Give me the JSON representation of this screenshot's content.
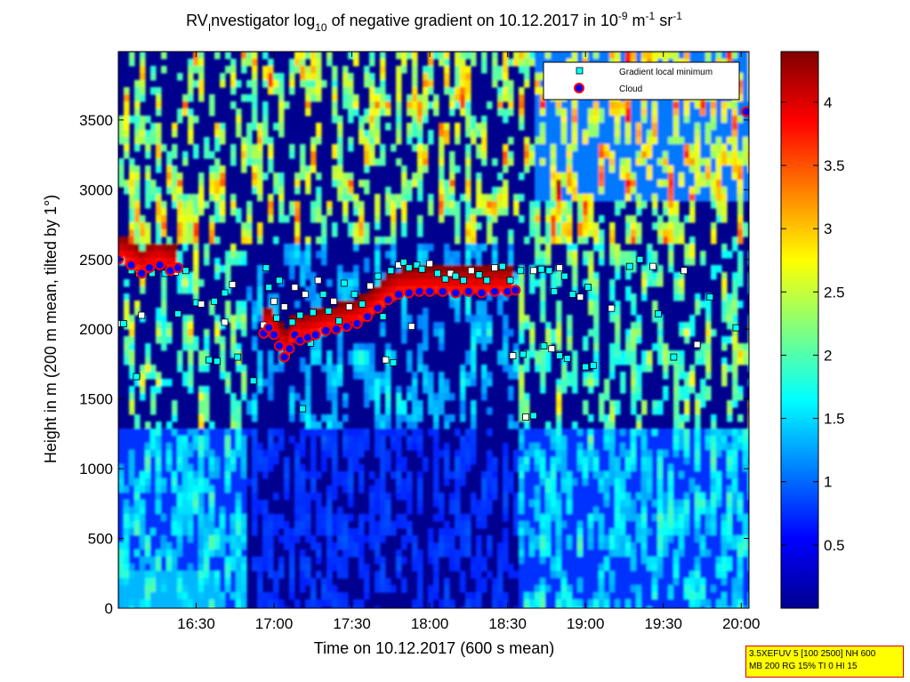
{
  "chart_data": {
    "type": "heatmap",
    "title_parts": {
      "a": "RV",
      "a_sub": "I",
      "b": "nvestigator log",
      "b_sub": "10",
      "c": " of negative gradient on 10.12.2017 in 10",
      "c_sup": "-9",
      "d": " m",
      "d_sup": "-1",
      "e": " sr",
      "e_sup": "-1"
    },
    "xlabel": "Time on 10.12.2017 (600 s mean)",
    "ylabel": "Height in m (200 m mean, tilted by 1°)",
    "x_ticks": [
      "16:30",
      "17:00",
      "17:30",
      "18:00",
      "18:30",
      "19:00",
      "19:30",
      "20:00"
    ],
    "x_tick_minutes": [
      990,
      1020,
      1050,
      1080,
      1110,
      1140,
      1170,
      1200
    ],
    "x_range_minutes": [
      960,
      1203
    ],
    "y_ticks": [
      "0",
      "500",
      "1000",
      "1500",
      "2000",
      "2500",
      "3000",
      "3500"
    ],
    "y_tick_values": [
      0,
      500,
      1000,
      1500,
      2000,
      2500,
      3000,
      3500
    ],
    "y_range": [
      0,
      3990
    ],
    "colorbar": {
      "ticks": [
        "0.5",
        "1",
        "1.5",
        "2",
        "2.5",
        "3",
        "3.5",
        "4"
      ],
      "tick_values": [
        0.5,
        1,
        1.5,
        2,
        2.5,
        3,
        3.5,
        4
      ],
      "range": [
        0,
        4.4
      ],
      "colormap": "jet"
    },
    "legend": {
      "placement": "top-right",
      "entries": [
        {
          "label": "Gradient local minimum",
          "marker": "square",
          "color": "#00ffff"
        },
        {
          "label": "Cloud",
          "marker": "circle",
          "color": "#ff0000"
        }
      ]
    },
    "cloud_series": {
      "name": "Cloud",
      "points": [
        [
          960,
          2500
        ],
        [
          965,
          2460
        ],
        [
          969,
          2400
        ],
        [
          972,
          2440
        ],
        [
          976,
          2460
        ],
        [
          980,
          2420
        ],
        [
          983,
          2440
        ],
        [
          1016,
          1970
        ],
        [
          1018,
          2010
        ],
        [
          1020,
          1960
        ],
        [
          1022,
          1880
        ],
        [
          1024,
          1800
        ],
        [
          1026,
          1860
        ],
        [
          1028,
          1960
        ],
        [
          1030,
          1920
        ],
        [
          1033,
          1940
        ],
        [
          1036,
          1960
        ],
        [
          1040,
          1990
        ],
        [
          1044,
          2000
        ],
        [
          1048,
          2020
        ],
        [
          1052,
          2040
        ],
        [
          1056,
          2090
        ],
        [
          1060,
          2150
        ],
        [
          1064,
          2210
        ],
        [
          1068,
          2250
        ],
        [
          1072,
          2260
        ],
        [
          1076,
          2270
        ],
        [
          1080,
          2270
        ],
        [
          1085,
          2270
        ],
        [
          1090,
          2260
        ],
        [
          1095,
          2270
        ],
        [
          1100,
          2260
        ],
        [
          1105,
          2270
        ],
        [
          1110,
          2270
        ],
        [
          1113,
          2280
        ],
        [
          1202,
          3560
        ]
      ]
    },
    "gradient_minimum_series": {
      "name": "Gradient local minimum",
      "points": [
        [
          960,
          2040
        ],
        [
          962,
          2040
        ],
        [
          965,
          2420
        ],
        [
          968,
          2400
        ],
        [
          973,
          2400
        ],
        [
          978,
          2400
        ],
        [
          982,
          2410
        ],
        [
          986,
          2420
        ],
        [
          967,
          1660
        ],
        [
          969,
          2100
        ],
        [
          983,
          2110
        ],
        [
          990,
          2190
        ],
        [
          992,
          2180
        ],
        [
          997,
          2200
        ],
        [
          1001,
          2260
        ],
        [
          1004,
          2320
        ],
        [
          995,
          1780
        ],
        [
          998,
          1770
        ],
        [
          1001,
          2050
        ],
        [
          1006,
          1800
        ],
        [
          1012,
          1630
        ],
        [
          1016,
          2030
        ],
        [
          1017,
          2440
        ],
        [
          1018,
          2300
        ],
        [
          1020,
          2200
        ],
        [
          1021,
          2080
        ],
        [
          1022,
          2350
        ],
        [
          1024,
          2160
        ],
        [
          1025,
          1830
        ],
        [
          1027,
          2050
        ],
        [
          1028,
          2300
        ],
        [
          1030,
          2100
        ],
        [
          1031,
          1430
        ],
        [
          1032,
          2250
        ],
        [
          1034,
          1900
        ],
        [
          1035,
          2120
        ],
        [
          1037,
          2350
        ],
        [
          1039,
          2250
        ],
        [
          1041,
          2130
        ],
        [
          1043,
          2200
        ],
        [
          1045,
          2060
        ],
        [
          1047,
          2330
        ],
        [
          1049,
          2160
        ],
        [
          1051,
          2250
        ],
        [
          1054,
          2180
        ],
        [
          1057,
          2310
        ],
        [
          1060,
          2380
        ],
        [
          1062,
          2090
        ],
        [
          1063,
          1780
        ],
        [
          1065,
          2420
        ],
        [
          1066,
          1760
        ],
        [
          1068,
          2460
        ],
        [
          1070,
          2480
        ],
        [
          1072,
          2440
        ],
        [
          1073,
          2020
        ],
        [
          1075,
          2460
        ],
        [
          1077,
          2430
        ],
        [
          1080,
          2470
        ],
        [
          1083,
          2400
        ],
        [
          1086,
          2360
        ],
        [
          1088,
          2400
        ],
        [
          1090,
          2380
        ],
        [
          1093,
          2350
        ],
        [
          1096,
          2420
        ],
        [
          1099,
          2390
        ],
        [
          1102,
          2350
        ],
        [
          1105,
          2440
        ],
        [
          1108,
          2450
        ],
        [
          1111,
          2350
        ],
        [
          1112,
          1810
        ],
        [
          1116,
          1820
        ],
        [
          1115,
          2420
        ],
        [
          1120,
          2420
        ],
        [
          1123,
          2430
        ],
        [
          1126,
          2420
        ],
        [
          1130,
          2440
        ],
        [
          1132,
          2380
        ],
        [
          1135,
          2250
        ],
        [
          1117,
          1370
        ],
        [
          1120,
          1380
        ],
        [
          1124,
          1880
        ],
        [
          1127,
          1860
        ],
        [
          1130,
          1810
        ],
        [
          1133,
          1790
        ],
        [
          1138,
          2230
        ],
        [
          1140,
          1730
        ],
        [
          1143,
          1740
        ],
        [
          1150,
          2150
        ],
        [
          1157,
          2450
        ],
        [
          1161,
          2500
        ],
        [
          1166,
          2450
        ],
        [
          1168,
          2110
        ],
        [
          1174,
          1800
        ],
        [
          1183,
          1890
        ],
        [
          1188,
          2230
        ],
        [
          1198,
          2010
        ],
        [
          1178,
          2420
        ],
        [
          1141,
          2300
        ],
        [
          1128,
          2270
        ]
      ]
    }
  },
  "annotation": {
    "line1": "3.5XEFUV 5 [100 2500] NH 600",
    "line2": "MB 200 RG 15% TI 0 HI 15"
  }
}
